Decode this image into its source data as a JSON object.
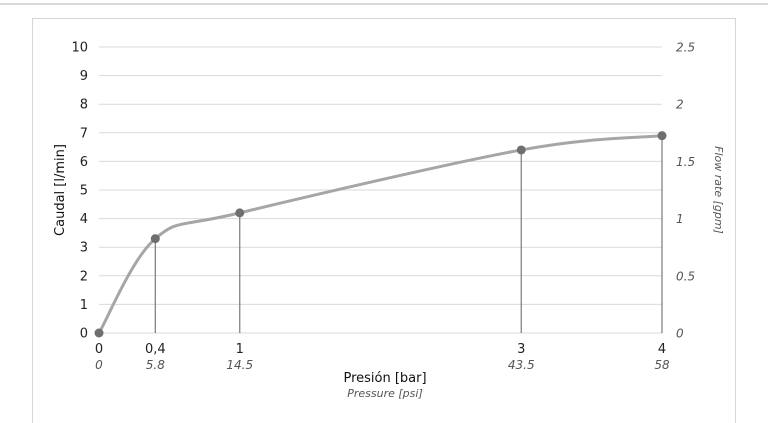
{
  "chart_data": {
    "type": "line",
    "xlabel": "Presión [bar]",
    "xlabel_secondary": "Pressure [psi]",
    "ylabel": "Caudal [l/min]",
    "ylabel_secondary": "Flow rate [gpm]",
    "ylim": [
      0,
      10
    ],
    "ylim_secondary": [
      0,
      2.5
    ],
    "xlim": [
      0,
      4
    ],
    "y_ticks": [
      "0",
      "1",
      "2",
      "3",
      "4",
      "5",
      "6",
      "7",
      "8",
      "9",
      "10"
    ],
    "y_ticks_secondary": [
      "0",
      "0.5",
      "1",
      "1.5",
      "2",
      "2.5"
    ],
    "x_ticks": [
      {
        "value": 0,
        "bar": "0",
        "psi": "0"
      },
      {
        "value": 0.4,
        "bar": "0,4",
        "psi": "5.8"
      },
      {
        "value": 1,
        "bar": "1",
        "psi": "14.5"
      },
      {
        "value": 3,
        "bar": "3",
        "psi": "43.5"
      },
      {
        "value": 4,
        "bar": "4",
        "psi": "58"
      }
    ],
    "series": [
      {
        "x": [
          0,
          0.4,
          1,
          3,
          4
        ],
        "y": [
          0,
          3.3,
          4.2,
          6.4,
          6.9
        ]
      }
    ],
    "grid": true,
    "line_color": "#a6a6a6",
    "marker_color": "#6f6f6f",
    "grid_color": "#d9d9d9"
  }
}
